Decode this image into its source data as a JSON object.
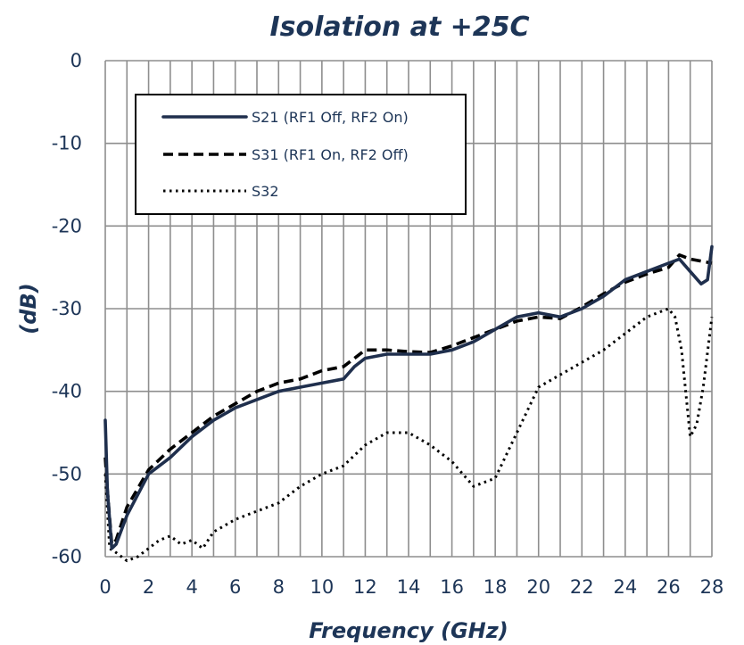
{
  "chart_data": {
    "type": "line",
    "title": "Isolation at +25C",
    "xlabel": "Frequency (GHz)",
    "ylabel": "(dB)",
    "xlim": [
      0,
      28
    ],
    "ylim": [
      -60,
      0
    ],
    "x_ticks": [
      0,
      2,
      4,
      6,
      8,
      10,
      12,
      14,
      16,
      18,
      20,
      22,
      24,
      26,
      28
    ],
    "y_ticks": [
      0,
      -10,
      -20,
      -30,
      -40,
      -50,
      -60
    ],
    "x_tick_labels": [
      "0",
      "2",
      "4",
      "6",
      "8",
      "10",
      "12",
      "14",
      "16",
      "18",
      "20",
      "22",
      "24",
      "26",
      "28"
    ],
    "y_tick_labels": [
      "0",
      "-10",
      "-20",
      "-30",
      "-40",
      "-50",
      "-60"
    ],
    "grid": true,
    "legend_position": "top-left",
    "series": [
      {
        "name": "S21 (RF1 Off, RF2 On)",
        "style": "solid",
        "color": "#1f2f4d",
        "points": [
          [
            0,
            -43.5
          ],
          [
            0.1,
            -52
          ],
          [
            0.3,
            -59
          ],
          [
            0.5,
            -58.5
          ],
          [
            1,
            -55
          ],
          [
            2,
            -50
          ],
          [
            3,
            -48
          ],
          [
            4,
            -45.5
          ],
          [
            5,
            -43.5
          ],
          [
            6,
            -42
          ],
          [
            7,
            -41
          ],
          [
            8,
            -40
          ],
          [
            9,
            -39.5
          ],
          [
            10,
            -39
          ],
          [
            11,
            -38.5
          ],
          [
            11.5,
            -37
          ],
          [
            12,
            -36
          ],
          [
            13,
            -35.5
          ],
          [
            14,
            -35.5
          ],
          [
            15,
            -35.5
          ],
          [
            16,
            -35
          ],
          [
            17,
            -34
          ],
          [
            18,
            -32.5
          ],
          [
            19,
            -31
          ],
          [
            20,
            -30.5
          ],
          [
            21,
            -31
          ],
          [
            22,
            -30
          ],
          [
            23,
            -28.5
          ],
          [
            24,
            -26.5
          ],
          [
            25,
            -25.5
          ],
          [
            26,
            -24.5
          ],
          [
            26.5,
            -24
          ],
          [
            27,
            -25.5
          ],
          [
            27.5,
            -27
          ],
          [
            27.8,
            -26.5
          ],
          [
            28,
            -22.5
          ]
        ]
      },
      {
        "name": "S31 (RF1 On, RF2 Off)",
        "style": "dashed",
        "color": "#000000",
        "points": [
          [
            0,
            -48
          ],
          [
            0.1,
            -52
          ],
          [
            0.3,
            -58.5
          ],
          [
            0.5,
            -58
          ],
          [
            1,
            -54
          ],
          [
            2,
            -49.5
          ],
          [
            3,
            -47
          ],
          [
            4,
            -45
          ],
          [
            5,
            -43
          ],
          [
            6,
            -41.5
          ],
          [
            7,
            -40
          ],
          [
            8,
            -39
          ],
          [
            9,
            -38.5
          ],
          [
            10,
            -37.5
          ],
          [
            11,
            -37
          ],
          [
            11.5,
            -36
          ],
          [
            12,
            -35
          ],
          [
            13,
            -35
          ],
          [
            14,
            -35.2
          ],
          [
            15,
            -35.3
          ],
          [
            16,
            -34.5
          ],
          [
            17,
            -33.5
          ],
          [
            18,
            -32.5
          ],
          [
            19,
            -31.5
          ],
          [
            20,
            -31
          ],
          [
            21,
            -31.2
          ],
          [
            22,
            -29.8
          ],
          [
            23,
            -28.2
          ],
          [
            24,
            -26.8
          ],
          [
            25,
            -25.8
          ],
          [
            26,
            -25
          ],
          [
            26.5,
            -23.5
          ],
          [
            27,
            -24
          ],
          [
            28,
            -24.5
          ]
        ]
      },
      {
        "name": "S32",
        "style": "dotted",
        "color": "#000000",
        "points": [
          [
            0,
            -50
          ],
          [
            0.2,
            -59
          ],
          [
            0.5,
            -59.5
          ],
          [
            1,
            -60.5
          ],
          [
            1.5,
            -60
          ],
          [
            2,
            -59
          ],
          [
            2.5,
            -58
          ],
          [
            3,
            -57.5
          ],
          [
            3.5,
            -58.5
          ],
          [
            4,
            -58
          ],
          [
            4.5,
            -59
          ],
          [
            5,
            -57
          ],
          [
            6,
            -55.5
          ],
          [
            7,
            -54.5
          ],
          [
            8,
            -53.5
          ],
          [
            9,
            -51.5
          ],
          [
            10,
            -50
          ],
          [
            11,
            -49
          ],
          [
            12,
            -46.5
          ],
          [
            13,
            -45
          ],
          [
            14,
            -45
          ],
          [
            15,
            -46.5
          ],
          [
            16,
            -48.5
          ],
          [
            17,
            -51.5
          ],
          [
            18,
            -50.5
          ],
          [
            19,
            -45
          ],
          [
            20,
            -39.5
          ],
          [
            21,
            -38
          ],
          [
            22,
            -36.5
          ],
          [
            23,
            -35
          ],
          [
            24,
            -33
          ],
          [
            25,
            -31
          ],
          [
            25.5,
            -30.5
          ],
          [
            26,
            -30
          ],
          [
            26.3,
            -31
          ],
          [
            26.6,
            -35
          ],
          [
            27,
            -45.5
          ],
          [
            27.3,
            -44
          ],
          [
            27.6,
            -39.5
          ],
          [
            28,
            -31
          ]
        ]
      }
    ]
  },
  "colors": {
    "text": "#1d3557",
    "grid": "#8e8e8e",
    "legend_border": "#000000"
  }
}
